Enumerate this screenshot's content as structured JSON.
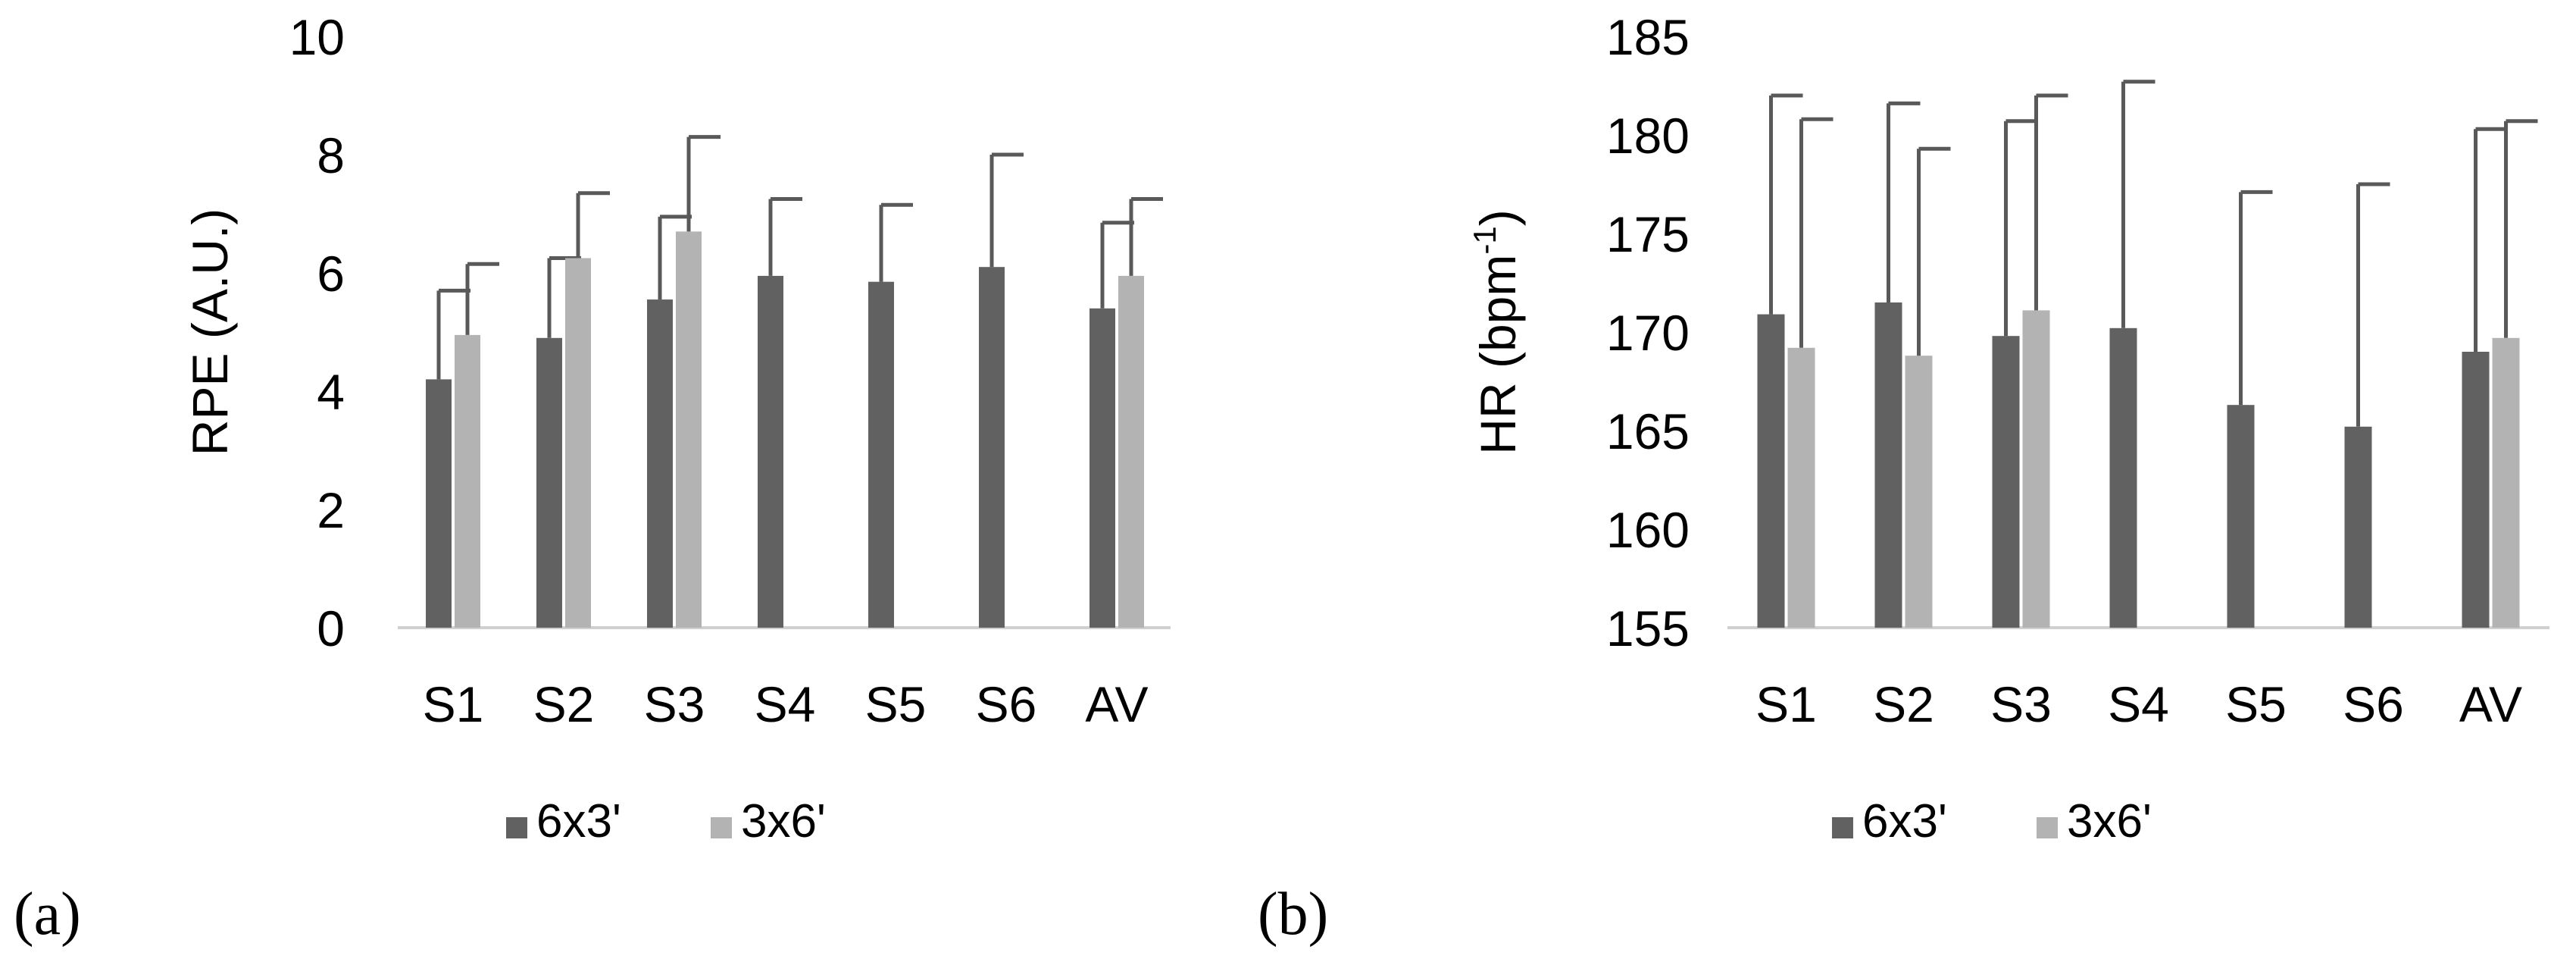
{
  "chart_data": [
    {
      "type": "bar",
      "panel_label": "(a)",
      "title": "",
      "xlabel": "",
      "ylabel": "RPE (A.U.)",
      "ylim": [
        0,
        10
      ],
      "yticks": [
        0,
        2,
        4,
        6,
        8,
        10
      ],
      "categories": [
        "S1",
        "S2",
        "S3",
        "S4",
        "S5",
        "S6",
        "AV"
      ],
      "series": [
        {
          "name": "6x3'",
          "color": "#616161",
          "values": [
            4.2,
            4.9,
            5.55,
            5.95,
            5.85,
            6.1,
            5.4
          ],
          "errors": [
            1.5,
            1.35,
            1.4,
            1.3,
            1.3,
            1.9,
            1.45
          ]
        },
        {
          "name": "3x6'",
          "color": "#b3b3b3",
          "values": [
            4.95,
            6.25,
            6.7,
            null,
            null,
            null,
            5.95
          ],
          "errors": [
            1.2,
            1.1,
            1.6,
            null,
            null,
            null,
            1.3
          ]
        }
      ],
      "legend": [
        "6x3'",
        "3x6'"
      ],
      "legend_position": "bottom"
    },
    {
      "type": "bar",
      "panel_label": "(b)",
      "title": "",
      "xlabel": "",
      "ylabel_main": "HR (bpm",
      "ylabel_sup": "-1",
      "ylabel_close": ")",
      "ylim": [
        155,
        185
      ],
      "yticks": [
        155,
        160,
        165,
        170,
        175,
        180,
        185
      ],
      "categories": [
        "S1",
        "S2",
        "S3",
        "S4",
        "S5",
        "S6",
        "AV"
      ],
      "series": [
        {
          "name": "6x3'",
          "color": "#616161",
          "values": [
            170.9,
            171.5,
            169.8,
            170.2,
            166.3,
            165.2,
            169.0
          ],
          "errors": [
            11.1,
            10.1,
            10.9,
            12.5,
            10.8,
            12.3,
            11.3
          ]
        },
        {
          "name": "3x6'",
          "color": "#b3b3b3",
          "values": [
            169.2,
            168.8,
            171.1,
            null,
            null,
            null,
            169.7
          ],
          "errors": [
            11.6,
            10.5,
            10.9,
            null,
            null,
            null,
            11.0
          ]
        }
      ],
      "legend": [
        "6x3'",
        "3x6'"
      ],
      "legend_position": "bottom"
    }
  ]
}
